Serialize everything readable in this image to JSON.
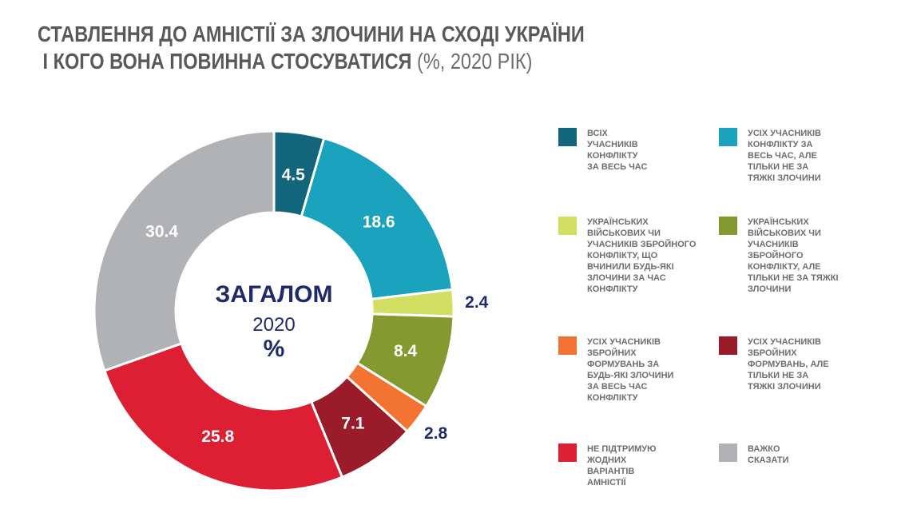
{
  "title_line1": "СТАВЛЕННЯ ДО АМНІСТІЇ ЗА ЗЛОЧИНИ НА СХОДІ УКРАЇНИ",
  "title_line2": " І КОГО ВОНА ПОВИННА СТОСУВАТИСЯ",
  "title_suffix": " (%, 2020 РІК)",
  "center": {
    "label": "ЗАГАЛОМ",
    "year": "2020",
    "unit": "%"
  },
  "chart_data": {
    "type": "pie",
    "donut": true,
    "title": "Ставлення до амністії за злочини на сході України і кого вона повинна стосуватися (%, 2020 рік)",
    "categories": [
      "ВСІХ\nУЧАСНИКІВ\nКОНФЛІКТУ\nЗА ВЕСЬ ЧАС",
      "УСІХ УЧАСНИКІВ\nКОНФЛІКТУ ЗА\nВЕСЬ ЧАС, АЛЕ\nТІЛЬКИ НЕ ЗА\nТЯЖКІ ЗЛОЧИНИ",
      "УКРАЇНСЬКИХ\nВІЙСЬКОВИХ ЧИ\nУЧАСНИКІВ ЗБРОЙНОГО\nКОНФЛІКТУ, ЩО\nВЧИНИЛИ БУДЬ-ЯКІ\nЗЛОЧИНИ ЗА ЧАС\nКОНФЛІКТУ",
      "УКРАЇНСЬКИХ\nВІЙСЬКОВИХ ЧИ\nУЧАСНИКІВ\nЗБРОЙНОГО\nКОНФЛІКТУ, АЛЕ\nТІЛЬКИ НЕ ЗА ТЯЖКІ\nЗЛОЧИНИ",
      "УСІХ УЧАСНИКІВ\nЗБРОЙНИХ\nФОРМУВАНЬ ЗА\nБУДЬ-ЯКІ ЗЛОЧИНИ\nЗА ВЕСЬ ЧАС\nКОНФЛІКТУ",
      "УСІХ УЧАСНИКІВ\nЗБРОЙНИХ\nФОРМУВАНЬ, АЛЕ\nТІЛЬКИ НЕ ЗА\nТЯЖКІ ЗЛОЧИНИ",
      "НЕ ПІДТРИМУЮ\nЖОДНИХ\nВАРІАНТІВ\nАМНІСТІЇ",
      "ВАЖКО\nСКАЗАТИ"
    ],
    "values": [
      4.5,
      18.6,
      2.4,
      8.4,
      2.8,
      7.1,
      25.8,
      30.4
    ],
    "value_labels": [
      "4.5",
      "18.6",
      "2.4",
      "8.4",
      "2.8",
      "7.1",
      "25.8",
      "30.4"
    ],
    "colors": [
      "#12657a",
      "#1ba2bd",
      "#d2df63",
      "#84992f",
      "#f37432",
      "#9a1b2a",
      "#dc1f32",
      "#b1b2b5"
    ],
    "label_outside": [
      false,
      false,
      true,
      false,
      true,
      false,
      false,
      false
    ],
    "outside_label_color": "#1f2a6b",
    "legend_order": [
      0,
      1,
      2,
      3,
      4,
      5,
      6,
      7
    ],
    "legend_placement": "right"
  }
}
